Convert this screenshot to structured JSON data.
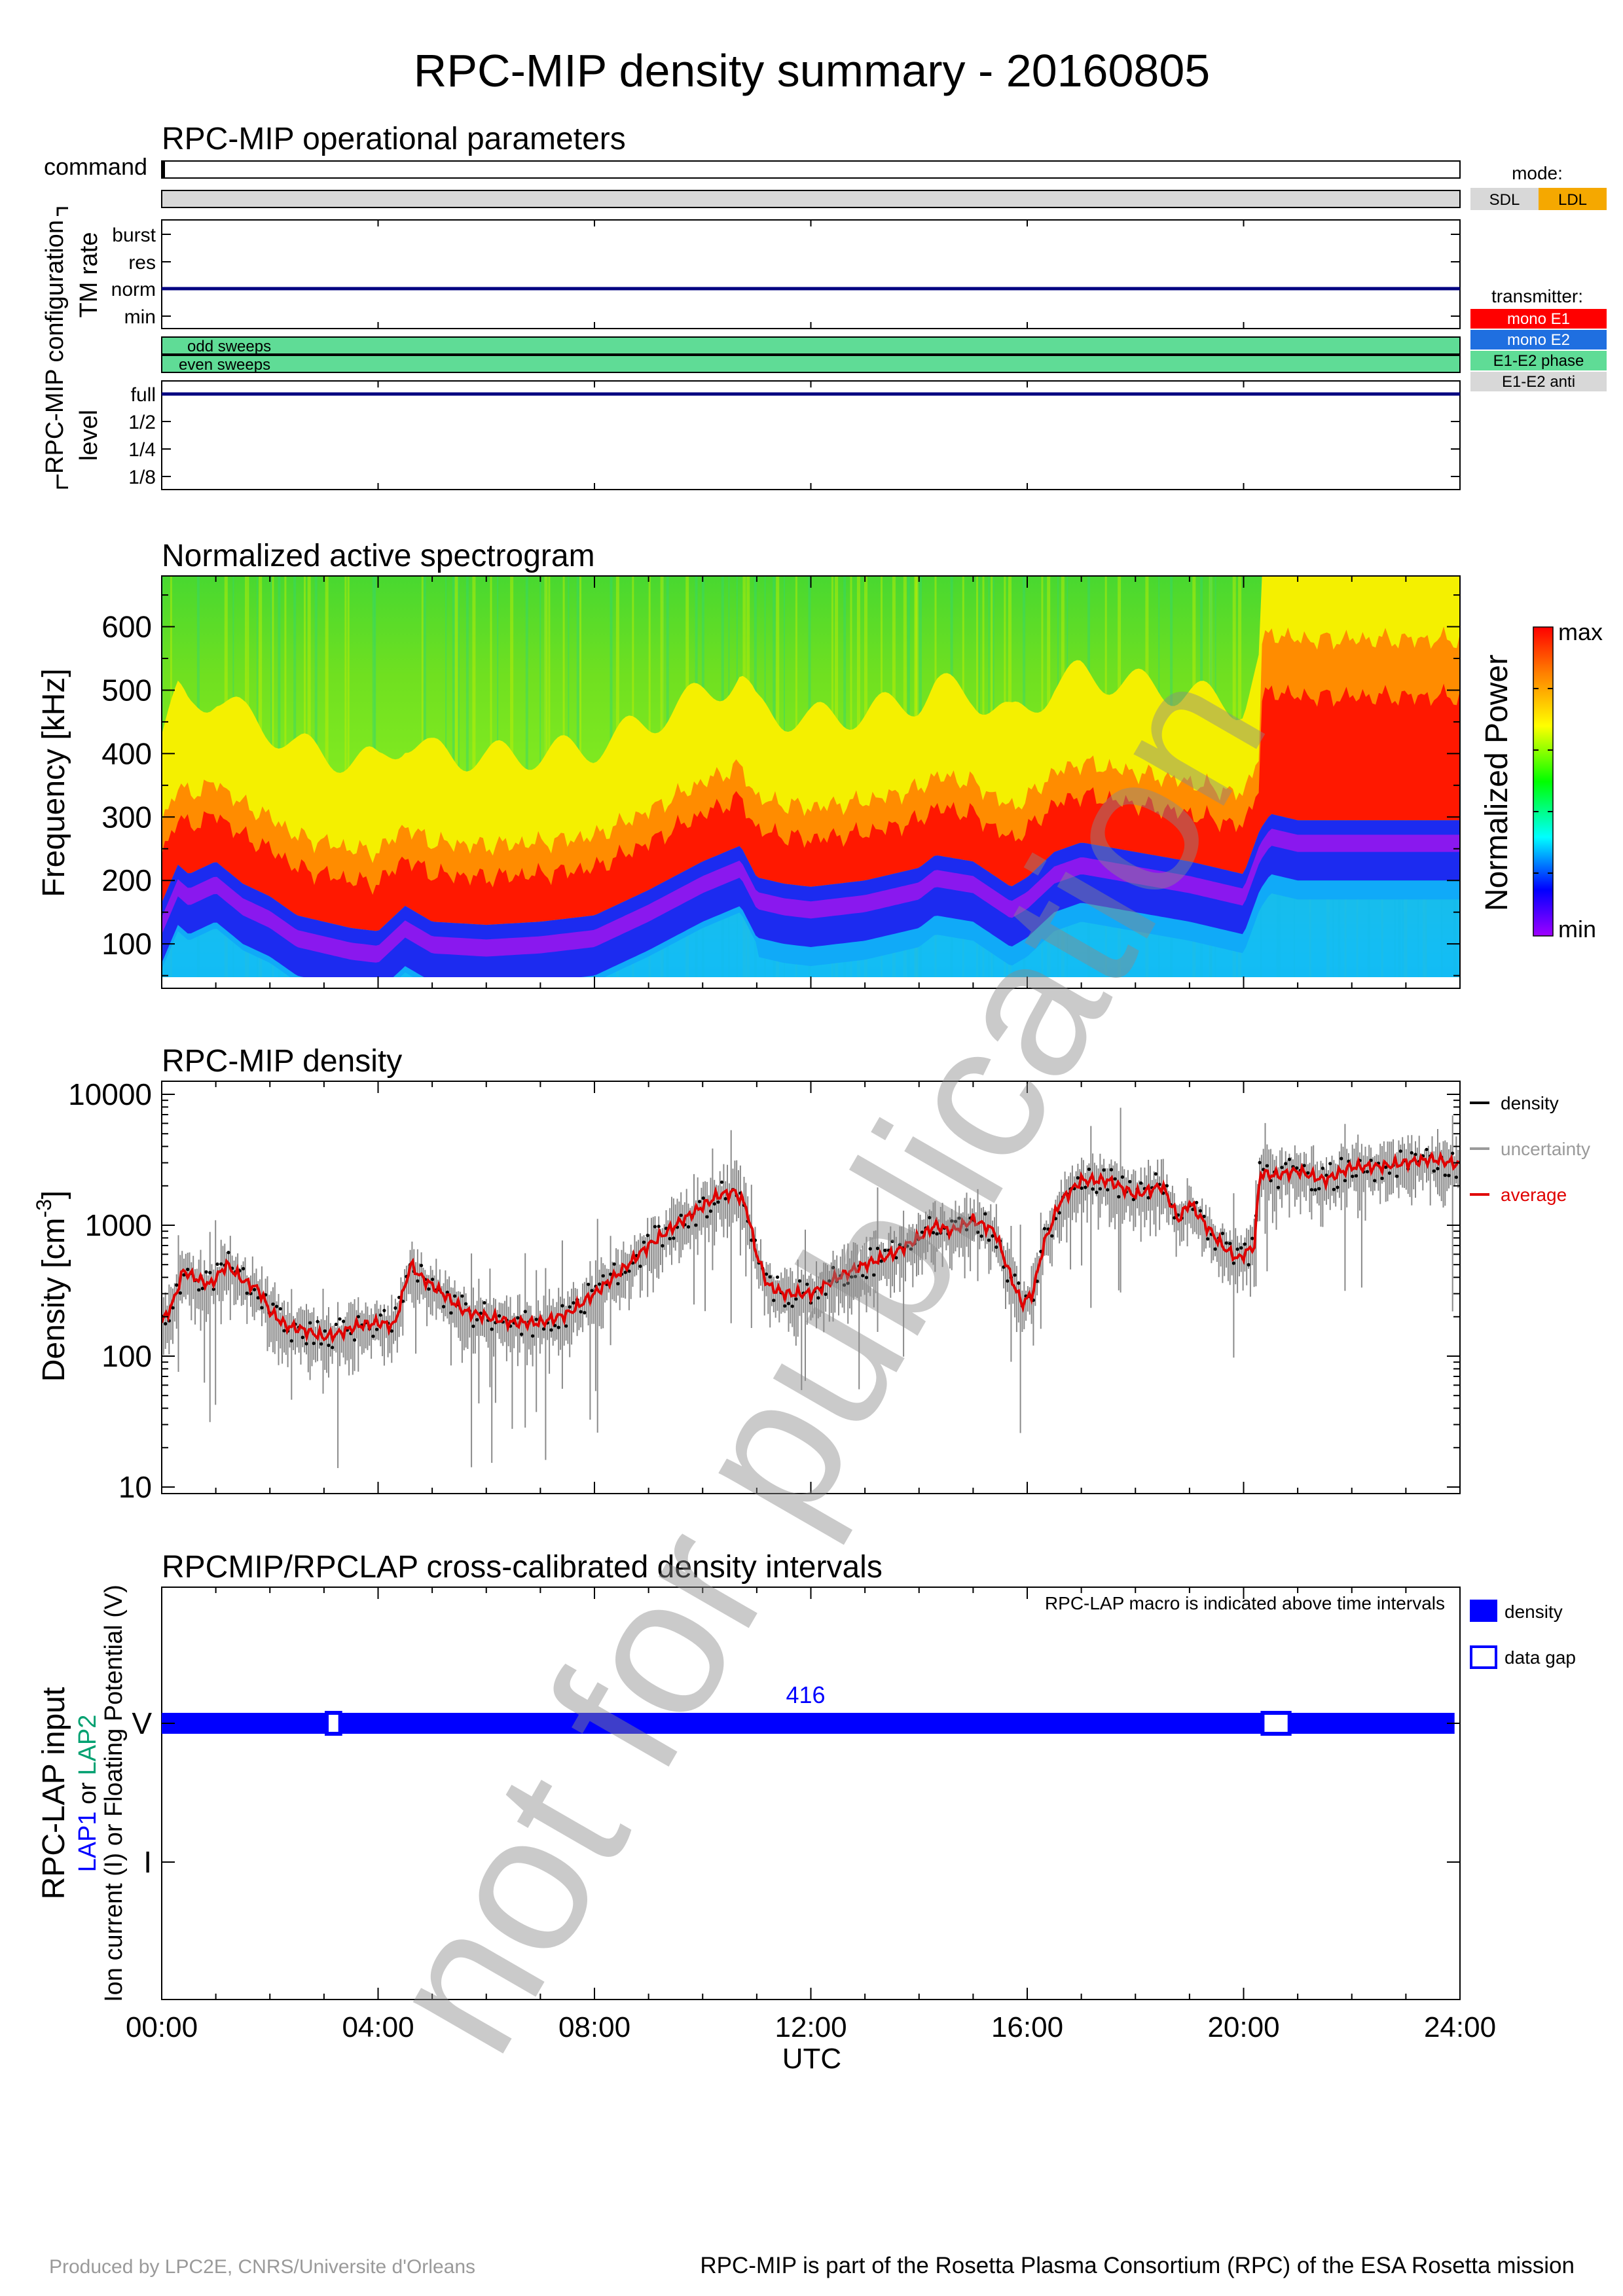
{
  "title": "RPC-MIP density summary - 20160805",
  "ops": {
    "title": "RPC-MIP operational parameters",
    "command_label": "command",
    "config_label": "RPC-MIP configuration",
    "tm_label": "TM rate",
    "tm_levels": [
      "burst",
      "res",
      "norm",
      "min"
    ],
    "sweeps": [
      "odd sweeps",
      "even sweeps"
    ],
    "level_label": "level",
    "levels": [
      "full",
      "1/2",
      "1/4",
      "1/8"
    ],
    "mode_title": "mode:",
    "modes": [
      {
        "label": "SDL",
        "color": "#d8d8d8"
      },
      {
        "label": "LDL",
        "color": "#f5a800"
      }
    ],
    "transmitter_title": "transmitter:",
    "transmitters": [
      {
        "label": "mono E1",
        "color": "#ff0000"
      },
      {
        "label": "mono E2",
        "color": "#1f6fe0"
      },
      {
        "label": "E1-E2 phase",
        "color": "#5fdc96"
      },
      {
        "label": "E1-E2 anti",
        "color": "#d8d8d8"
      }
    ],
    "tm_rate": "norm",
    "level": "full"
  },
  "spec": {
    "title": "Normalized active spectrogram",
    "ylabel": "Frequency [kHz]",
    "yticks": [
      "100",
      "200",
      "300",
      "400",
      "500",
      "600"
    ],
    "cbar_label": "Normalized Power",
    "cbar_max": "max",
    "cbar_min": "min"
  },
  "dens": {
    "title": "RPC-MIP density",
    "ylabel_main": "Density [cm",
    "ylabel_sup": "-3",
    "ylabel_end": "]",
    "yticks": [
      "10",
      "100",
      "1000",
      "10000"
    ],
    "legend": [
      {
        "label": "density",
        "color": "#000000"
      },
      {
        "label": "uncertainty",
        "color": "#9a9a9a"
      },
      {
        "label": "average",
        "color": "#e00000"
      }
    ]
  },
  "lap": {
    "title": "RPCMIP/RPCLAP cross-calibrated density intervals",
    "note": "RPC-LAP macro is indicated above time intervals",
    "macro": "416",
    "ylabel1": "RPC-LAP input",
    "ylabel2_a": "LAP1",
    "ylabel2_b": " or ",
    "ylabel2_c": "LAP2",
    "ylabel3": "Ion current (I) or Floating Potential (V)",
    "yticks": [
      "V",
      "I"
    ],
    "legend": [
      {
        "label": "density",
        "color": "#0000ff"
      },
      {
        "label": "data gap",
        "color": "#0000ff"
      }
    ]
  },
  "xaxis": {
    "ticks": [
      "00:00",
      "04:00",
      "08:00",
      "12:00",
      "16:00",
      "20:00",
      "24:00"
    ],
    "label": "UTC"
  },
  "watermark": "not for publication",
  "footer_left": "Produced by LPC2E, CNRS/Universite d'Orleans",
  "footer_right": "RPC-MIP is part of the Rosetta Plasma Consortium (RPC) of the ESA Rosetta mission",
  "chart_data": [
    {
      "type": "heatmap",
      "title": "Normalized active spectrogram",
      "xlabel": "UTC",
      "ylabel": "Frequency [kHz]",
      "xlim": [
        0,
        24
      ],
      "ylim": [
        30,
        680
      ],
      "colorbar": [
        "min",
        "max"
      ],
      "cutoff_t": [
        0,
        0.3,
        0.5,
        1,
        1.5,
        2,
        2.5,
        3,
        3.5,
        4,
        4.5,
        5,
        6,
        7,
        8,
        9,
        10,
        10.7,
        11,
        11.5,
        12,
        13,
        14,
        14.3,
        15,
        15.7,
        16,
        16.5,
        17,
        18,
        19,
        19.5,
        20,
        20.3,
        20.5,
        21,
        22,
        23,
        24
      ],
      "cutoff_khz": [
        170,
        230,
        215,
        235,
        200,
        180,
        150,
        140,
        130,
        125,
        165,
        140,
        135,
        140,
        150,
        190,
        235,
        260,
        210,
        200,
        195,
        205,
        225,
        245,
        235,
        195,
        210,
        250,
        265,
        250,
        235,
        225,
        215,
        285,
        310,
        300,
        300,
        300,
        300
      ]
    },
    {
      "type": "line",
      "title": "RPC-MIP density",
      "xlabel": "UTC",
      "ylabel": "Density [cm-3]",
      "yscale": "log",
      "ylim": [
        10,
        10000
      ],
      "xlim": [
        0,
        24
      ],
      "series": [
        {
          "name": "average",
          "x": [
            0,
            0.2,
            0.4,
            0.6,
            0.9,
            1.2,
            1.5,
            1.8,
            2,
            2.3,
            2.6,
            3,
            3.3,
            3.6,
            4,
            4.3,
            4.6,
            4.8,
            5.2,
            5.6,
            6,
            6.5,
            7,
            7.5,
            8,
            8.5,
            9,
            9.5,
            10,
            10.3,
            10.6,
            10.8,
            11,
            11.2,
            11.5,
            12,
            12.5,
            13,
            13.5,
            14,
            14.3,
            14.6,
            15,
            15.4,
            15.7,
            15.9,
            16.1,
            16.3,
            16.6,
            17,
            17.5,
            18,
            18.5,
            18.8,
            19,
            19.3,
            19.6,
            19.9,
            20.2,
            20.3,
            20.6,
            21,
            21.5,
            22,
            22.5,
            23,
            23.5,
            24
          ],
          "y": [
            180,
            250,
            450,
            400,
            350,
            500,
            380,
            320,
            220,
            170,
            160,
            140,
            150,
            170,
            180,
            170,
            500,
            400,
            300,
            220,
            200,
            180,
            180,
            210,
            300,
            450,
            700,
            1000,
            1400,
            1700,
            1800,
            1400,
            600,
            350,
            300,
            300,
            400,
            500,
            600,
            800,
            1000,
            900,
            1100,
            900,
            400,
            250,
            300,
            700,
            1500,
            2200,
            2200,
            1700,
            2000,
            1100,
            1500,
            1000,
            700,
            550,
            700,
            2500,
            2400,
            2600,
            2200,
            2800,
            2800,
            3000,
            3200,
            2900
          ]
        }
      ]
    },
    {
      "type": "bar",
      "title": "RPCMIP/RPCLAP cross-calibrated density intervals",
      "xlabel": "UTC",
      "xlim": [
        0,
        24
      ],
      "categories": [
        "V",
        "I"
      ],
      "macro": "416",
      "intervals": [
        [
          0,
          3.05
        ],
        [
          3.3,
          20.35
        ],
        [
          20.85,
          23.9
        ]
      ],
      "gaps": [
        [
          3.05,
          3.3
        ],
        [
          20.35,
          20.85
        ]
      ]
    }
  ]
}
